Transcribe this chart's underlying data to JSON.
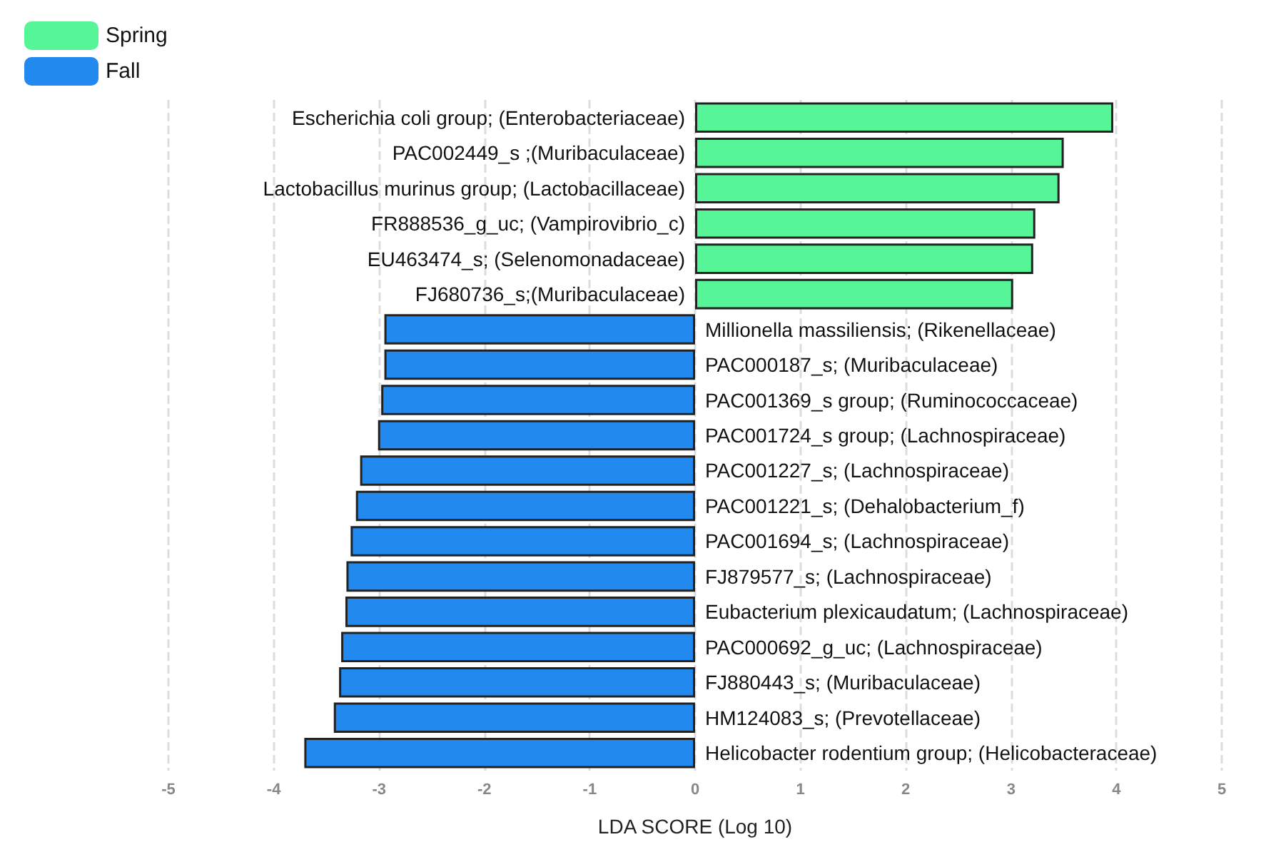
{
  "chart_data": {
    "type": "bar",
    "orientation": "horizontal",
    "xlabel": "LDA SCORE (Log 10)",
    "categories": [
      "Escherichia coli group; (Enterobacteriaceae)",
      "PAC002449_s ;(Muribaculaceae)",
      "Lactobacillus murinus group; (Lactobacillaceae)",
      "FR888536_g_uc; (Vampirovibrio_c)",
      "EU463474_s; (Selenomonadaceae)",
      "FJ680736_s;(Muribaculaceae)",
      "Millionella massiliensis; (Rikenellaceae)",
      "PAC000187_s; (Muribaculaceae)",
      "PAC001369_s group; (Ruminococcaceae)",
      "PAC001724_s group; (Lachnospiraceae)",
      "PAC001227_s; (Lachnospiraceae)",
      "PAC001221_s; (Dehalobacterium_f)",
      "PAC001694_s; (Lachnospiraceae)",
      "FJ879577_s; (Lachnospiraceae)",
      "Eubacterium plexicaudatum; (Lachnospiraceae)",
      "PAC000692_g_uc; (Lachnospiraceae)",
      "FJ880443_s; (Muribaculaceae)",
      "HM124083_s; (Prevotellaceae)",
      "Helicobacter rodentium group; (Helicobacteraceae)"
    ],
    "series": [
      {
        "name": "Spring",
        "color": "#55f598",
        "values": [
          3.97,
          3.5,
          3.46,
          3.23,
          3.21,
          3.02,
          null,
          null,
          null,
          null,
          null,
          null,
          null,
          null,
          null,
          null,
          null,
          null,
          null
        ]
      },
      {
        "name": "Fall",
        "color": "#2289ee",
        "values": [
          null,
          null,
          null,
          null,
          null,
          null,
          -2.95,
          -2.95,
          -2.98,
          -3.01,
          -3.18,
          -3.22,
          -3.27,
          -3.31,
          -3.32,
          -3.36,
          -3.38,
          -3.43,
          -3.71
        ]
      }
    ],
    "xlim": [
      -5,
      5
    ],
    "xticks": [
      -5,
      -4,
      -3,
      -2,
      -1,
      0,
      1,
      2,
      3,
      4,
      5
    ],
    "grid": "x",
    "legend": "top left"
  }
}
